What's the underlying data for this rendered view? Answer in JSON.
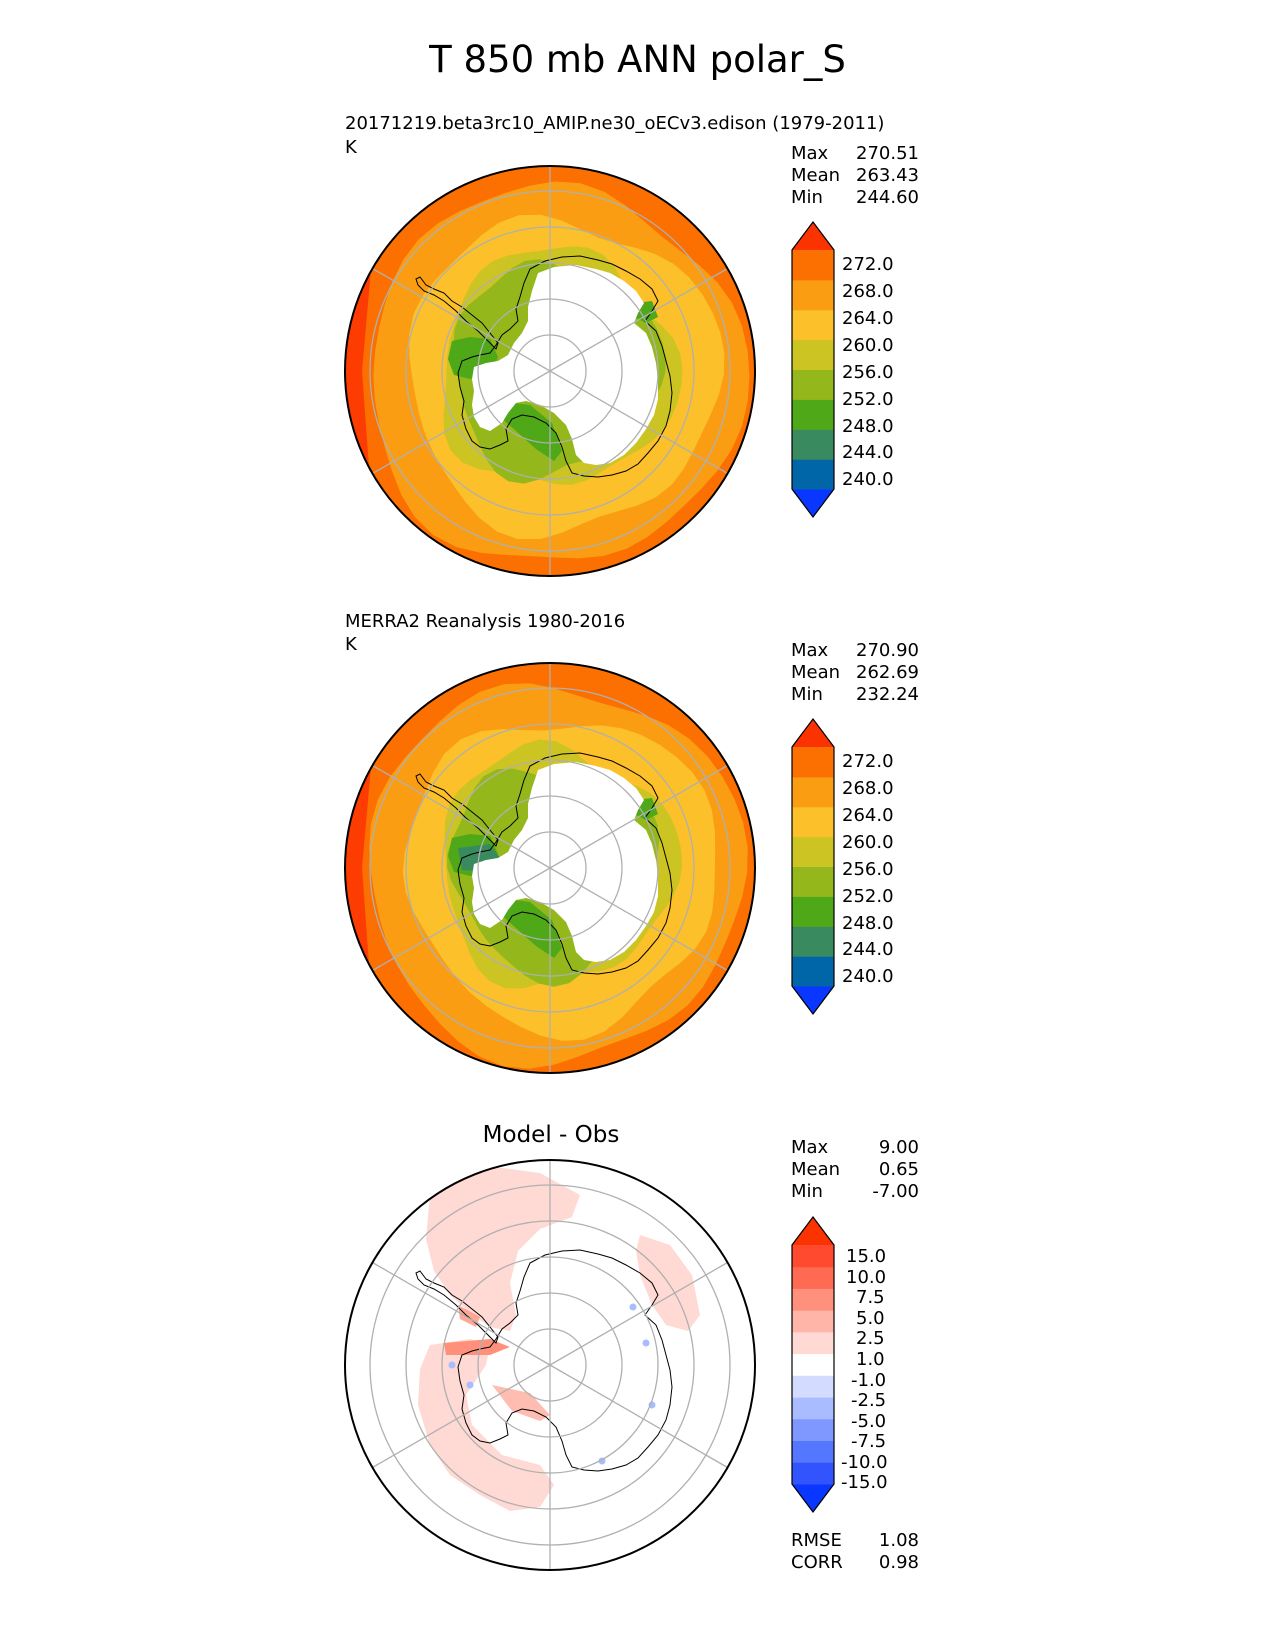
{
  "figure": {
    "title": "T 850 mb ANN polar_S"
  },
  "colors": {
    "t_scale": [
      "#0a37ff",
      "#0066a8",
      "#3a8a60",
      "#4fa818",
      "#94b81c",
      "#ccc422",
      "#fbc02a",
      "#fb9d12",
      "#fb7000",
      "#fb3300"
    ],
    "diff_scale": [
      "#0a37ff",
      "#3254ff",
      "#5576ff",
      "#7f98ff",
      "#a9bcff",
      "#d3dcff",
      "#ffffff",
      "#ffd9d3",
      "#ffb6a8",
      "#ff917c",
      "#ff6a52",
      "#ff4a30",
      "#fb3300"
    ],
    "land_outline": "#000000",
    "gridline": "#b0b0b0"
  },
  "panels": [
    {
      "title": "20171219.beta3rc10_AMIP.ne30_oECv3.edison (1979-2011)",
      "units": "K",
      "stats": [
        {
          "label": "Max",
          "value": "270.51"
        },
        {
          "label": "Mean",
          "value": "263.43"
        },
        {
          "label": "Min",
          "value": "244.60"
        }
      ],
      "colorbar_ticks": [
        "272.0",
        "268.0",
        "264.0",
        "260.0",
        "256.0",
        "252.0",
        "248.0",
        "244.0",
        "240.0"
      ]
    },
    {
      "title": "MERRA2 Reanalysis 1980-2016",
      "units": "K",
      "stats": [
        {
          "label": "Max",
          "value": "270.90"
        },
        {
          "label": "Mean",
          "value": "262.69"
        },
        {
          "label": "Min",
          "value": "232.24"
        }
      ],
      "colorbar_ticks": [
        "272.0",
        "268.0",
        "264.0",
        "260.0",
        "256.0",
        "252.0",
        "248.0",
        "244.0",
        "240.0"
      ]
    },
    {
      "title": "Model - Obs",
      "stats": [
        {
          "label": "Max",
          "value": "9.00"
        },
        {
          "label": "Mean",
          "value": "0.65"
        },
        {
          "label": "Min",
          "value": "-7.00"
        }
      ],
      "colorbar_ticks": [
        "15.0",
        "10.0",
        "7.5",
        "5.0",
        "2.5",
        "1.0",
        "-1.0",
        "-2.5",
        "-5.0",
        "-7.5",
        "-10.0",
        "-15.0"
      ],
      "metrics": [
        {
          "label": "RMSE",
          "value": "1.08"
        },
        {
          "label": "CORR",
          "value": "0.98"
        }
      ]
    }
  ]
}
